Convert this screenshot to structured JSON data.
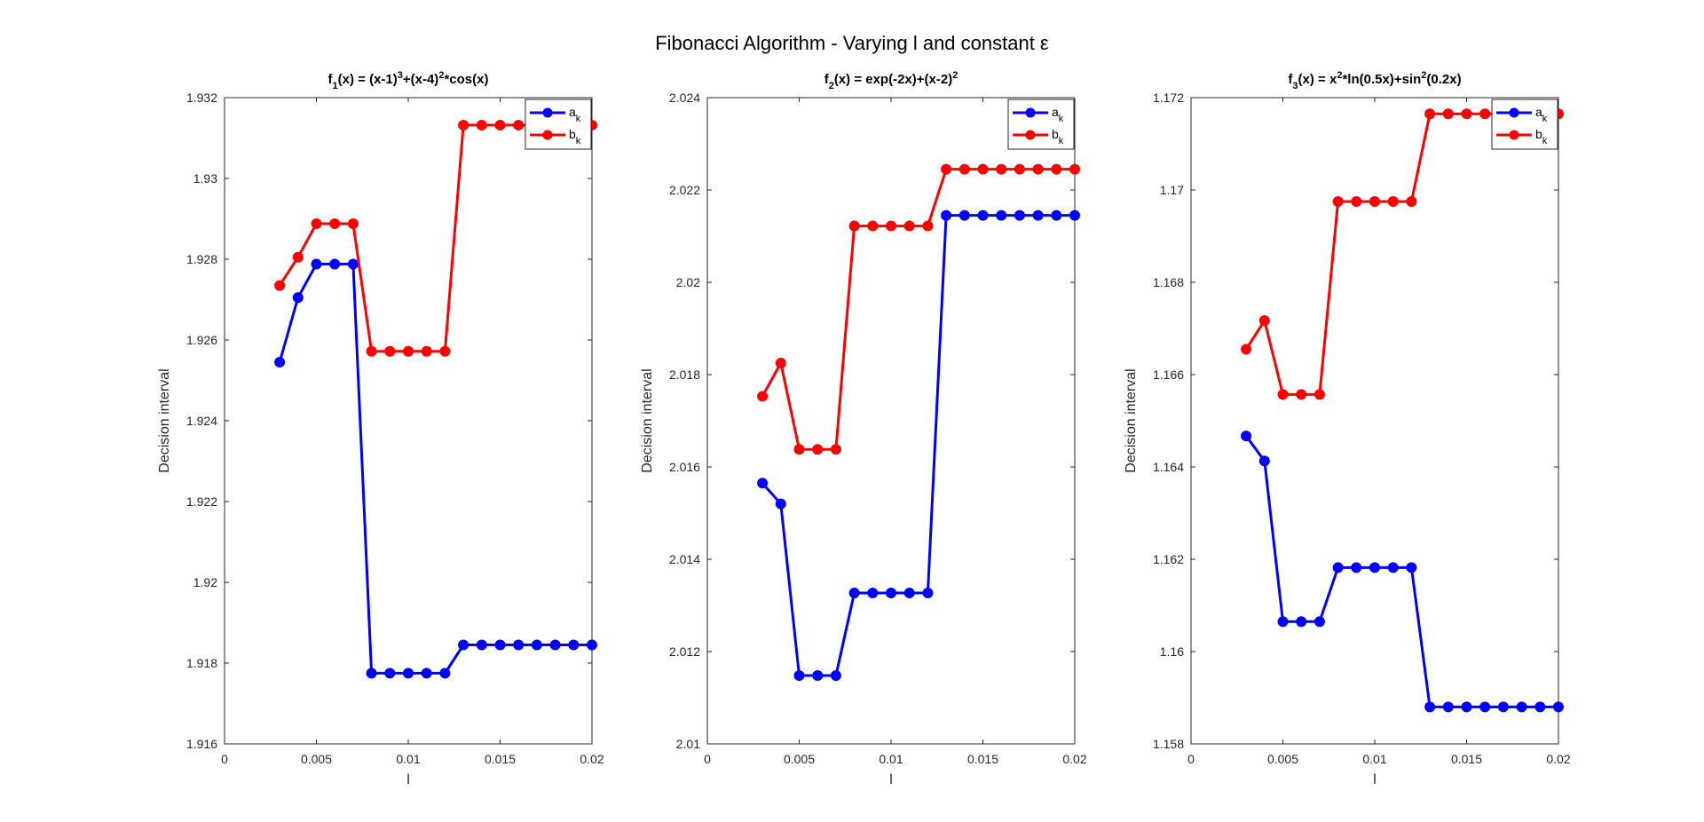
{
  "suptitle": "Fibonacci Algorithm - Varying l and constant ε",
  "chart_data": [
    {
      "type": "line",
      "title_parts": [
        [
          "f",
          ""
        ],
        [
          "1",
          "sub"
        ],
        [
          "(x) = (x-1)",
          ""
        ],
        [
          "3",
          "sup"
        ],
        [
          "+(x-4)",
          ""
        ],
        [
          "2",
          "sup"
        ],
        [
          "*cos(x)",
          ""
        ]
      ],
      "xlabel": "l",
      "ylabel": "Decision interval",
      "xlim": [
        0,
        0.02
      ],
      "ylim": [
        1.916,
        1.932
      ],
      "xticks": [
        0,
        0.005,
        0.01,
        0.015,
        0.02
      ],
      "xtick_labels": [
        "0",
        "0.005",
        "0.01",
        "0.015",
        "0.02"
      ],
      "yticks": [
        1.916,
        1.918,
        1.92,
        1.922,
        1.924,
        1.926,
        1.928,
        1.93,
        1.932
      ],
      "ytick_labels": [
        "1.916",
        "1.918",
        "1.92",
        "1.922",
        "1.924",
        "1.926",
        "1.928",
        "1.93",
        "1.932"
      ],
      "x": [
        0.003,
        0.004,
        0.005,
        0.006,
        0.007,
        0.008,
        0.009,
        0.01,
        0.011,
        0.012,
        0.013,
        0.014,
        0.015,
        0.016,
        0.017,
        0.018,
        0.019,
        0.02
      ],
      "series": [
        {
          "name": "a",
          "sub": "k",
          "color": "#0000ff",
          "values": [
            1.92545,
            1.92705,
            1.92788,
            1.92788,
            1.92788,
            1.91775,
            1.91775,
            1.91775,
            1.91775,
            1.91775,
            1.91845,
            1.91845,
            1.91845,
            1.91845,
            1.91845,
            1.91845,
            1.91845,
            1.91845
          ]
        },
        {
          "name": "b",
          "sub": "k",
          "color": "#ff0000",
          "values": [
            1.92735,
            1.92805,
            1.92888,
            1.92888,
            1.92888,
            1.92572,
            1.92572,
            1.92572,
            1.92572,
            1.92572,
            1.93132,
            1.93132,
            1.93132,
            1.93132,
            1.93132,
            1.93132,
            1.93132,
            1.93132
          ]
        }
      ],
      "legend": "top-right",
      "grid": false
    },
    {
      "type": "line",
      "title_parts": [
        [
          "f",
          ""
        ],
        [
          "2",
          "sub"
        ],
        [
          "(x) = exp(-2x)+(x-2)",
          ""
        ],
        [
          "2",
          "sup"
        ]
      ],
      "xlabel": "l",
      "ylabel": "Decision interval",
      "xlim": [
        0,
        0.02
      ],
      "ylim": [
        2.01,
        2.024
      ],
      "xticks": [
        0,
        0.005,
        0.01,
        0.015,
        0.02
      ],
      "xtick_labels": [
        "0",
        "0.005",
        "0.01",
        "0.015",
        "0.02"
      ],
      "yticks": [
        2.01,
        2.012,
        2.014,
        2.016,
        2.018,
        2.02,
        2.022,
        2.024
      ],
      "ytick_labels": [
        "2.01",
        "2.012",
        "2.014",
        "2.016",
        "2.018",
        "2.02",
        "2.022",
        "2.024"
      ],
      "x": [
        0.003,
        0.004,
        0.005,
        0.006,
        0.007,
        0.008,
        0.009,
        0.01,
        0.011,
        0.012,
        0.013,
        0.014,
        0.015,
        0.016,
        0.017,
        0.018,
        0.019,
        0.02
      ],
      "series": [
        {
          "name": "a",
          "sub": "k",
          "color": "#0000ff",
          "values": [
            2.01565,
            2.0152,
            2.01148,
            2.01148,
            2.01148,
            2.01327,
            2.01327,
            2.01327,
            2.01327,
            2.01327,
            2.02145,
            2.02145,
            2.02145,
            2.02145,
            2.02145,
            2.02145,
            2.02145,
            2.02145
          ]
        },
        {
          "name": "b",
          "sub": "k",
          "color": "#ff0000",
          "values": [
            2.01753,
            2.01825,
            2.01638,
            2.01638,
            2.01638,
            2.02122,
            2.02122,
            2.02122,
            2.02122,
            2.02122,
            2.02245,
            2.02245,
            2.02245,
            2.02245,
            2.02245,
            2.02245,
            2.02245,
            2.02245
          ]
        }
      ],
      "legend": "top-right",
      "grid": false
    },
    {
      "type": "line",
      "title_parts": [
        [
          "f",
          ""
        ],
        [
          "3",
          "sub"
        ],
        [
          "(x) = x",
          ""
        ],
        [
          "2",
          "sup"
        ],
        [
          "*ln(0.5x)+sin",
          ""
        ],
        [
          "2",
          "sup"
        ],
        [
          "(0.2x)",
          ""
        ]
      ],
      "xlabel": "l",
      "ylabel": "Decision interval",
      "xlim": [
        0,
        0.02
      ],
      "ylim": [
        1.158,
        1.172
      ],
      "xticks": [
        0,
        0.005,
        0.01,
        0.015,
        0.02
      ],
      "xtick_labels": [
        "0",
        "0.005",
        "0.01",
        "0.015",
        "0.02"
      ],
      "yticks": [
        1.158,
        1.16,
        1.162,
        1.164,
        1.166,
        1.168,
        1.17,
        1.172
      ],
      "ytick_labels": [
        "1.158",
        "1.16",
        "1.162",
        "1.164",
        "1.166",
        "1.168",
        "1.17",
        "1.172"
      ],
      "x": [
        0.003,
        0.004,
        0.005,
        0.006,
        0.007,
        0.008,
        0.009,
        0.01,
        0.011,
        0.012,
        0.013,
        0.014,
        0.015,
        0.016,
        0.017,
        0.018,
        0.019,
        0.02
      ],
      "series": [
        {
          "name": "a",
          "sub": "k",
          "color": "#0000ff",
          "values": [
            1.16467,
            1.16413,
            1.16065,
            1.16065,
            1.16065,
            1.16182,
            1.16182,
            1.16182,
            1.16182,
            1.16182,
            1.1588,
            1.1588,
            1.1588,
            1.1588,
            1.1588,
            1.1588,
            1.1588,
            1.1588
          ]
        },
        {
          "name": "b",
          "sub": "k",
          "color": "#ff0000",
          "values": [
            1.16655,
            1.16717,
            1.16557,
            1.16557,
            1.16557,
            1.16975,
            1.16975,
            1.16975,
            1.16975,
            1.16975,
            1.17165,
            1.17165,
            1.17165,
            1.17165,
            1.17165,
            1.17165,
            1.17165,
            1.17165
          ]
        }
      ],
      "legend": "top-right",
      "grid": false
    }
  ]
}
